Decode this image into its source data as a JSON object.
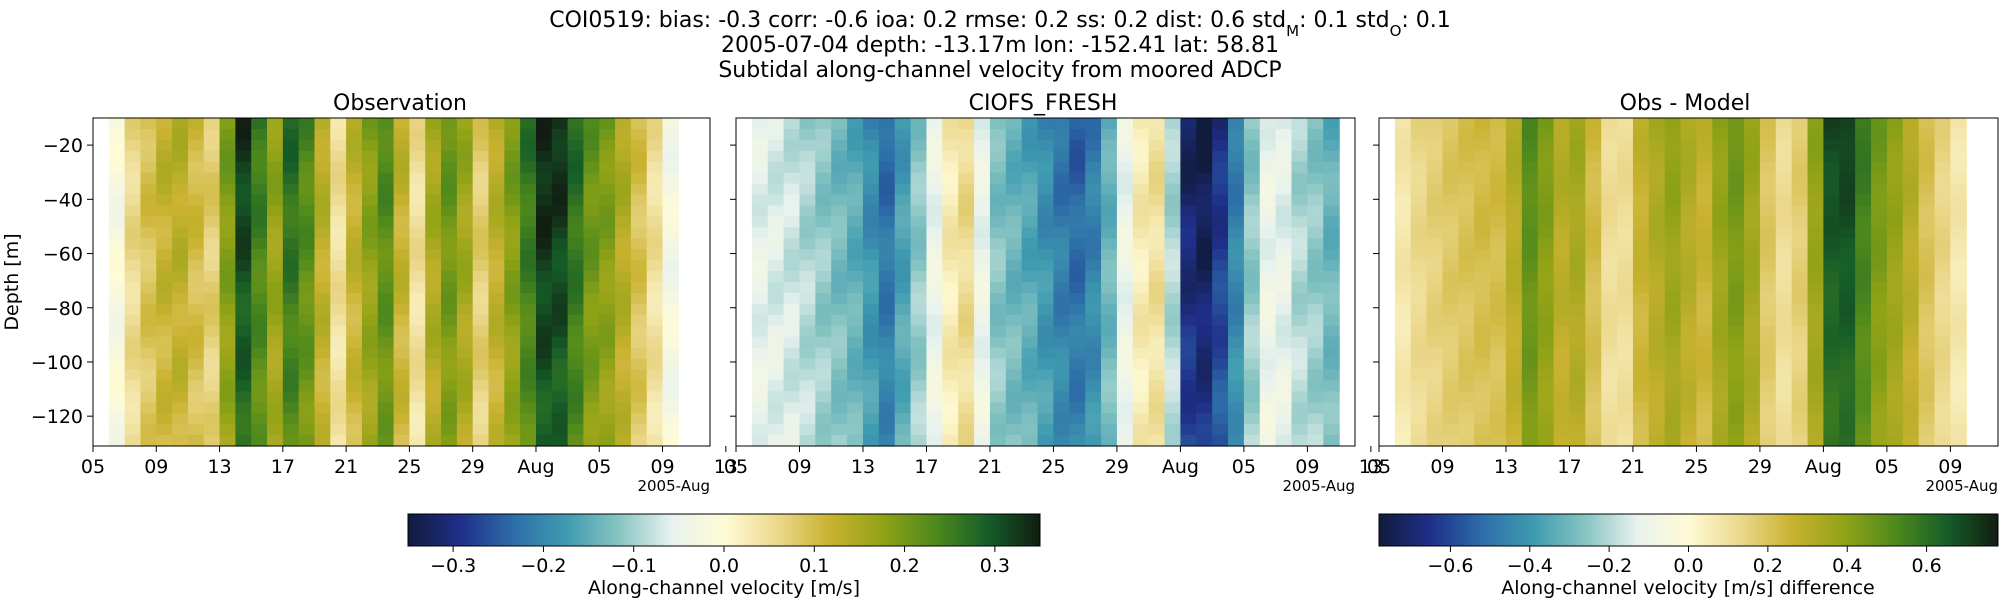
{
  "header": {
    "title_prefix": "COI0519: bias: -0.3  corr: -0.6  ioa: 0.2  rmse: 0.2  ss: 0.2  dist: 0.6  std",
    "std_model_sub": "M",
    "title_mid": ": 0.1  std",
    "std_obs_sub": "O",
    "title_suffix": ": 0.1",
    "line2": "2005-07-04 depth: -13.17m lon: -152.41 lat: 58.81",
    "line3": "Subtidal along-channel velocity from moored ADCP"
  },
  "chart_data": [
    {
      "type": "heatmap",
      "title": "Observation",
      "ylabel": "Depth [m]",
      "x_tick_labels": [
        "05",
        "09",
        "13",
        "17",
        "21",
        "25",
        "29",
        "Aug",
        "05",
        "09",
        "13"
      ],
      "x_offset_label": "2005-Aug",
      "y_ticks": [
        -20,
        -40,
        -60,
        -80,
        -100,
        -120
      ],
      "xlim": [
        "2005-07-05",
        "2005-08-13"
      ],
      "ylim": [
        -131,
        -10
      ],
      "data_x_range": [
        "2005-07-06",
        "2005-08-11"
      ],
      "colormap": "delta",
      "clim": [
        -0.35,
        0.35
      ],
      "daily_velocity_profile": [
        -0.02,
        0.06,
        0.1,
        0.13,
        0.14,
        0.11,
        0.08,
        0.2,
        0.33,
        0.26,
        0.18,
        0.28,
        0.24,
        0.14,
        0.05,
        0.13,
        0.19,
        0.24,
        0.13,
        0.05,
        0.16,
        0.22,
        0.17,
        0.08,
        0.14,
        0.2,
        0.27,
        0.35,
        0.34,
        0.28,
        0.22,
        0.2,
        0.15,
        0.1,
        0.05,
        -0.03
      ]
    },
    {
      "type": "heatmap",
      "title": "CIOFS_FRESH",
      "ylabel": "",
      "x_tick_labels": [
        "05",
        "09",
        "13",
        "17",
        "21",
        "25",
        "29",
        "Aug",
        "05",
        "09",
        "13"
      ],
      "x_offset_label": "2005-Aug",
      "y_ticks": [
        -20,
        -40,
        -60,
        -80,
        -100,
        -120
      ],
      "xlim": [
        "2005-07-05",
        "2005-08-13"
      ],
      "ylim": [
        -131,
        -10
      ],
      "data_x_range": [
        "2005-07-06",
        "2005-08-12"
      ],
      "colormap": "delta",
      "clim": [
        -0.35,
        0.35
      ],
      "daily_velocity_profile": [
        -0.06,
        -0.07,
        -0.08,
        -0.1,
        -0.12,
        -0.14,
        -0.16,
        -0.2,
        -0.24,
        -0.18,
        -0.12,
        -0.05,
        0.03,
        0.06,
        -0.05,
        -0.13,
        -0.15,
        -0.17,
        -0.2,
        -0.23,
        -0.25,
        -0.22,
        -0.15,
        -0.05,
        0.03,
        0.05,
        -0.1,
        -0.33,
        -0.35,
        -0.3,
        -0.22,
        -0.12,
        -0.05,
        -0.06,
        -0.1,
        -0.12,
        -0.15
      ]
    },
    {
      "type": "heatmap",
      "title": "Obs - Model",
      "ylabel": "",
      "x_tick_labels": [
        "05",
        "09",
        "13",
        "17",
        "21",
        "25",
        "29",
        "Aug",
        "05",
        "09",
        "13"
      ],
      "x_offset_label": "2005-Aug",
      "y_ticks": [
        -20,
        -40,
        -60,
        -80,
        -100,
        -120
      ],
      "xlim": [
        "2005-07-05",
        "2005-08-13"
      ],
      "ylim": [
        -131,
        -10
      ],
      "data_x_range": [
        "2005-07-06",
        "2005-08-11"
      ],
      "colormap": "delta",
      "clim": [
        -0.78,
        0.78
      ],
      "daily_difference_profile": [
        0.08,
        0.14,
        0.17,
        0.2,
        0.22,
        0.24,
        0.24,
        0.32,
        0.52,
        0.44,
        0.32,
        0.36,
        0.24,
        0.12,
        0.12,
        0.28,
        0.34,
        0.4,
        0.33,
        0.28,
        0.4,
        0.47,
        0.38,
        0.2,
        0.12,
        0.18,
        0.4,
        0.7,
        0.72,
        0.58,
        0.46,
        0.4,
        0.32,
        0.22,
        0.15,
        0.08
      ]
    }
  ],
  "colorbars": [
    {
      "label": "Along-channel velocity [m/s]",
      "ticks": [
        -0.3,
        -0.2,
        -0.1,
        0.0,
        0.1,
        0.2,
        0.3
      ],
      "range": [
        -0.35,
        0.35
      ]
    },
    {
      "label": "Along-channel velocity [m/s] difference",
      "ticks": [
        -0.6,
        -0.4,
        -0.2,
        0.0,
        0.2,
        0.4,
        0.6
      ],
      "range": [
        -0.78,
        0.78
      ]
    }
  ],
  "colormap_stops": [
    "#111b3c",
    "#1f2f8a",
    "#2d6da8",
    "#3f9bb0",
    "#87c4c2",
    "#e8f2ee",
    "#fffbd6",
    "#ecd98e",
    "#c9b230",
    "#92a316",
    "#4f8a1c",
    "#165e28",
    "#111d12"
  ]
}
